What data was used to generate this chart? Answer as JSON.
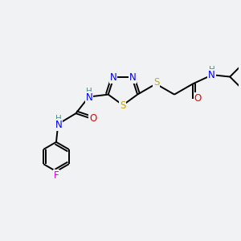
{
  "bg_color": "#f0f2f4",
  "atom_colors": {
    "C": "#000000",
    "H": "#4a9090",
    "N": "#0000ee",
    "O": "#ee0000",
    "S": "#ccaa00",
    "F": "#dd00dd"
  },
  "bond_color": "#000000",
  "bond_width": 1.4
}
